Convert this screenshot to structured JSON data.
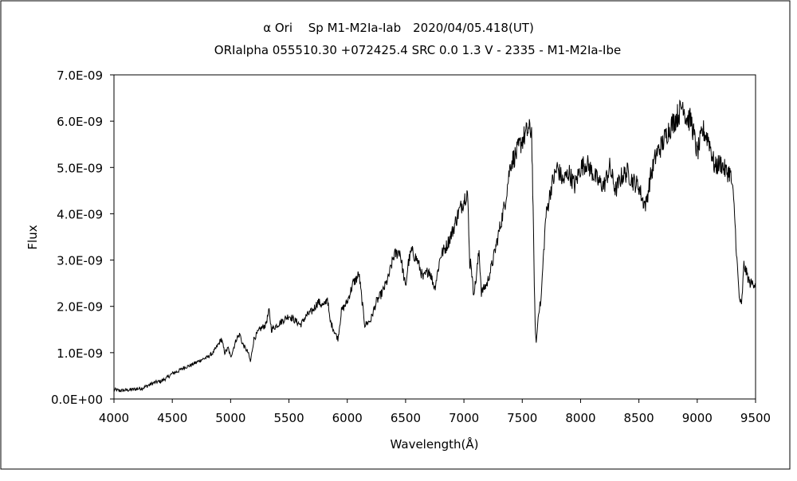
{
  "chart_data": {
    "type": "line",
    "title": "α Ori　 Sp M1-M2Ia-Iab　2020/04/05.418(UT)",
    "subtitle": "ORIalpha 055510.30 +072425.4 SRC 0.0 1.3 V - 2335 - M1-M2Ia-Ibe",
    "xlabel": "Wavelength(Å)",
    "ylabel": "Flux",
    "xlim": [
      4000,
      9500
    ],
    "ylim": [
      0,
      7e-09
    ],
    "xticks": [
      "4000",
      "4500",
      "5000",
      "5500",
      "6000",
      "6500",
      "7000",
      "7500",
      "8000",
      "8500",
      "9000",
      "9500"
    ],
    "yticks": [
      "0.0E+00",
      "1.0E-09",
      "2.0E-09",
      "3.0E-09",
      "4.0E-09",
      "5.0E-09",
      "6.0E-09",
      "7.0E-09"
    ],
    "grid": false,
    "legend": "none",
    "series": [
      {
        "x": [
          4000,
          4050,
          4100,
          4150,
          4200,
          4250,
          4300,
          4350,
          4400,
          4450,
          4500,
          4550,
          4600,
          4650,
          4700,
          4750,
          4800,
          4850,
          4900,
          4920,
          4950,
          4980,
          5000,
          5050,
          5080,
          5100,
          5150,
          5170,
          5200,
          5250,
          5300,
          5330,
          5350,
          5400,
          5450,
          5500,
          5550,
          5600,
          5650,
          5700,
          5750,
          5800,
          5830,
          5850,
          5900,
          5920,
          5950,
          6000,
          6050,
          6080,
          6100,
          6150,
          6200,
          6250,
          6300,
          6350,
          6400,
          6450,
          6500,
          6520,
          6550,
          6600,
          6650,
          6700,
          6750,
          6800,
          6850,
          6900,
          6950,
          7000,
          7030,
          7050,
          7060,
          7080,
          7100,
          7130,
          7150,
          7200,
          7250,
          7300,
          7350,
          7400,
          7450,
          7500,
          7550,
          7580,
          7590,
          7600,
          7610,
          7620,
          7640,
          7660,
          7700,
          7750,
          7800,
          7850,
          7900,
          7950,
          8000,
          8050,
          8100,
          8150,
          8200,
          8250,
          8300,
          8350,
          8400,
          8450,
          8500,
          8530,
          8560,
          8600,
          8650,
          8700,
          8750,
          8800,
          8850,
          8880,
          8900,
          8950,
          9000,
          9050,
          9100,
          9150,
          9200,
          9250,
          9280,
          9300,
          9320,
          9340,
          9360,
          9380,
          9400,
          9450,
          9500
        ],
        "values": [
          2e-10,
          1.8e-10,
          1.9e-10,
          2e-10,
          2.2e-10,
          2.4e-10,
          3e-10,
          3.6e-10,
          3.8e-10,
          4.5e-10,
          5.5e-10,
          6e-10,
          6.8e-10,
          7.2e-10,
          7.8e-10,
          8.5e-10,
          9e-10,
          1e-09,
          1.2e-09,
          1.3e-09,
          1e-09,
          1.1e-09,
          9e-10,
          1.3e-09,
          1.4e-09,
          1.2e-09,
          1e-09,
          8e-10,
          1.3e-09,
          1.5e-09,
          1.6e-09,
          1.9e-09,
          1.5e-09,
          1.6e-09,
          1.7e-09,
          1.8e-09,
          1.7e-09,
          1.6e-09,
          1.8e-09,
          1.9e-09,
          2.1e-09,
          2e-09,
          2.2e-09,
          1.7e-09,
          1.4e-09,
          1.3e-09,
          1.9e-09,
          2.1e-09,
          2.5e-09,
          2.6e-09,
          2.7e-09,
          1.6e-09,
          1.7e-09,
          2.1e-09,
          2.3e-09,
          2.6e-09,
          3.1e-09,
          3.2e-09,
          2.4e-09,
          2.9e-09,
          3.2e-09,
          3e-09,
          2.6e-09,
          2.8e-09,
          2.4e-09,
          3.1e-09,
          3.3e-09,
          3.6e-09,
          4e-09,
          4.3e-09,
          4.5e-09,
          2.9e-09,
          3e-09,
          2.3e-09,
          2.5e-09,
          3.2e-09,
          2.3e-09,
          2.5e-09,
          3e-09,
          3.6e-09,
          4.2e-09,
          5.1e-09,
          5.3e-09,
          5.6e-09,
          5.8e-09,
          5.8e-09,
          4.5e-09,
          3e-09,
          1.6e-09,
          1.2e-09,
          1.9e-09,
          2.1e-09,
          3.9e-09,
          4.6e-09,
          5e-09,
          4.7e-09,
          4.9e-09,
          4.6e-09,
          5e-09,
          5.1e-09,
          4.9e-09,
          4.7e-09,
          4.6e-09,
          5e-09,
          4.5e-09,
          4.8e-09,
          4.9e-09,
          4.7e-09,
          4.6e-09,
          4.3e-09,
          4.2e-09,
          4.8e-09,
          5.3e-09,
          5.5e-09,
          5.8e-09,
          6e-09,
          6.2e-09,
          6.4e-09,
          6.1e-09,
          6e-09,
          5.3e-09,
          5.8e-09,
          5.6e-09,
          5e-09,
          5.1e-09,
          4.9e-09,
          4.9e-09,
          4.6e-09,
          4e-09,
          3e-09,
          2.2e-09,
          2e-09,
          2.9e-09,
          2.5e-09,
          2.5e-09
        ]
      }
    ]
  }
}
